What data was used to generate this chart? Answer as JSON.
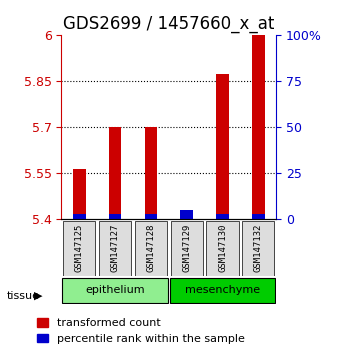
{
  "title": "GDS2699 / 1457660_x_at",
  "samples": [
    "GSM147125",
    "GSM147127",
    "GSM147128",
    "GSM147129",
    "GSM147130",
    "GSM147132"
  ],
  "red_values": [
    5.565,
    5.7,
    5.7,
    5.4,
    5.875,
    6.0
  ],
  "blue_values": [
    5.415,
    5.415,
    5.415,
    5.415,
    5.415,
    5.415
  ],
  "blue_heights": [
    3,
    3,
    3,
    5,
    3,
    3
  ],
  "ylim": [
    5.4,
    6.0
  ],
  "yticks": [
    5.4,
    5.55,
    5.7,
    5.85,
    6.0
  ],
  "ytick_labels": [
    "5.4",
    "5.55",
    "5.7",
    "5.85",
    "6"
  ],
  "right_yticks": [
    0,
    25,
    50,
    75,
    100
  ],
  "right_ytick_labels": [
    "0",
    "25",
    "50",
    "75",
    "100%"
  ],
  "groups": [
    {
      "label": "epithelium",
      "samples": [
        0,
        1,
        2
      ],
      "color": "#90EE90"
    },
    {
      "label": "mesenchyme",
      "samples": [
        3,
        4,
        5
      ],
      "color": "#00CC00"
    }
  ],
  "bar_width": 0.35,
  "red_color": "#CC0000",
  "blue_color": "#0000CC",
  "left_tick_color": "#CC0000",
  "right_tick_color": "#0000CC",
  "title_fontsize": 12,
  "tick_fontsize": 9,
  "legend_fontsize": 8,
  "tissue_label": "tissue",
  "legend_items": [
    "transformed count",
    "percentile rank within the sample"
  ]
}
